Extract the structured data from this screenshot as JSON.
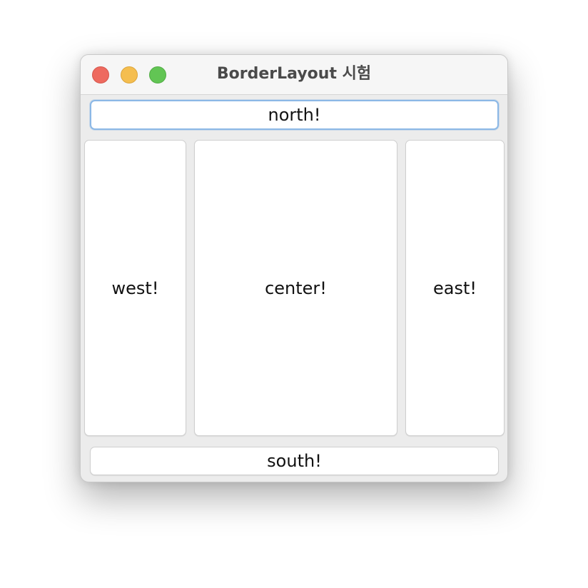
{
  "window": {
    "title": "BorderLayout 시험"
  },
  "buttons": {
    "north": "north!",
    "west": "west!",
    "center": "center!",
    "east": "east!",
    "south": "south!"
  },
  "colors": {
    "close": "#ee6a5f",
    "minimize": "#f5be4f",
    "zoom": "#62c554",
    "focus_ring": "#8cb8e6"
  }
}
